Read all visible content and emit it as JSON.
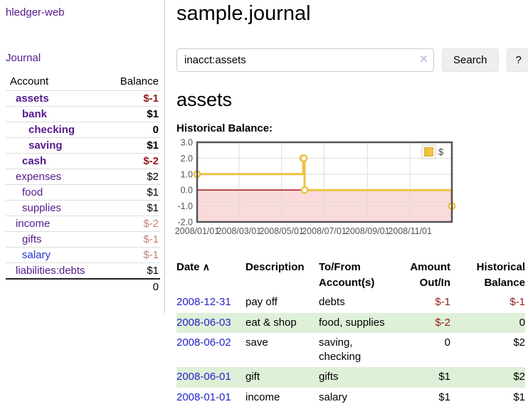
{
  "colors": {
    "accent_purple": "#551a8b",
    "link_blue": "#2323cc",
    "negative_red": "#961919",
    "muted_negative_red": "#c57e7e",
    "stripe_green": "#dff0d8",
    "chart_line_gold": "#edc240"
  },
  "sidebar": {
    "brand": "hledger-web",
    "journal_label": "Journal",
    "columns": {
      "account": "Account",
      "balance": "Balance"
    },
    "accounts": [
      {
        "name": "assets",
        "balance": "$-1",
        "name_class": "lvl1 bold",
        "balance_class": "bold neg"
      },
      {
        "name": "bank",
        "balance": "$1",
        "name_class": "lvl2 bold",
        "balance_class": "bold"
      },
      {
        "name": "checking",
        "balance": "0",
        "name_class": "lvl3 bold",
        "balance_class": "bold"
      },
      {
        "name": "saving",
        "balance": "$1",
        "name_class": "lvl3 bold",
        "balance_class": "bold"
      },
      {
        "name": "cash",
        "balance": "$-2",
        "name_class": "lvl2 bold",
        "balance_class": "bold neg"
      },
      {
        "name": "expenses",
        "balance": "$2",
        "name_class": "lvl1",
        "balance_class": ""
      },
      {
        "name": "food",
        "balance": "$1",
        "name_class": "lvl2",
        "balance_class": ""
      },
      {
        "name": "supplies",
        "balance": "$1",
        "name_class": "lvl2",
        "balance_class": ""
      },
      {
        "name": "income",
        "balance": "$-2",
        "name_class": "lvl1",
        "balance_class": "muted"
      },
      {
        "name": "gifts",
        "balance": "$-1",
        "name_class": "lvl2",
        "balance_class": "muted"
      },
      {
        "name": "salary",
        "balance": "$-1",
        "name_class": "lvl2 blue",
        "balance_class": "muted"
      },
      {
        "name": "liabilities:debts",
        "balance": "$1",
        "name_class": "lvl1",
        "balance_class": ""
      }
    ],
    "total": "0"
  },
  "main": {
    "title": "sample.journal",
    "search": {
      "value": "inacct:assets",
      "clear_icon": "×",
      "button_label": "Search",
      "help_label": "?"
    },
    "account_heading": "assets",
    "table": {
      "columns": [
        "Date",
        "Description",
        "To/From Account(s)",
        "Amount Out/In",
        "Historical Balance"
      ],
      "sort_icon": "∧",
      "rows": [
        {
          "date": "2008-12-31",
          "description": "pay off",
          "accounts": "debts",
          "amount": "$-1",
          "amount_class": "neg",
          "balance": "$-1",
          "balance_class": "neg"
        },
        {
          "date": "2008-06-03",
          "description": "eat & shop",
          "accounts": "food, supplies",
          "amount": "$-2",
          "amount_class": "neg",
          "balance": "0",
          "balance_class": ""
        },
        {
          "date": "2008-06-02",
          "description": "save",
          "accounts": "saving, checking",
          "amount": "0",
          "amount_class": "",
          "balance": "$2",
          "balance_class": ""
        },
        {
          "date": "2008-06-01",
          "description": "gift",
          "accounts": "gifts",
          "amount": "$1",
          "amount_class": "",
          "balance": "$2",
          "balance_class": ""
        },
        {
          "date": "2008-01-01",
          "description": "income",
          "accounts": "salary",
          "amount": "$1",
          "amount_class": "",
          "balance": "$1",
          "balance_class": ""
        }
      ]
    }
  },
  "chart_data": {
    "type": "line",
    "step": true,
    "title": "Historical Balance:",
    "xlabel": "",
    "ylabel": "",
    "x_domain": [
      "2008-01-01",
      "2008-12-31"
    ],
    "ylim": [
      -2,
      3
    ],
    "grid": true,
    "y_ticks": [
      {
        "label": "3.0",
        "value": 3
      },
      {
        "label": "2.0",
        "value": 2
      },
      {
        "label": "1.0",
        "value": 1
      },
      {
        "label": "0.0",
        "value": 0
      },
      {
        "label": "-1.0",
        "value": -1
      },
      {
        "label": "-2.0",
        "value": -2
      }
    ],
    "x_ticks": [
      {
        "label": "2008/01/01",
        "date": "2008-01-01"
      },
      {
        "label": "2008/03/01",
        "date": "2008-03-01"
      },
      {
        "label": "2008/05/01",
        "date": "2008-05-01"
      },
      {
        "label": "2008/07/01",
        "date": "2008-07-01"
      },
      {
        "label": "2008/09/01",
        "date": "2008-09-01"
      },
      {
        "label": "2008/11/01",
        "date": "2008-11-01"
      }
    ],
    "series": [
      {
        "name": "$",
        "color": "#edc240",
        "points": [
          [
            "2008-01-01",
            1
          ],
          [
            "2008-06-01",
            2
          ],
          [
            "2008-06-02",
            2
          ],
          [
            "2008-06-03",
            0
          ],
          [
            "2008-12-31",
            -1
          ]
        ]
      }
    ],
    "negative_region_color": "#f9dbdb",
    "zero_line_color": "#aa2222",
    "grid_color": "#dcdcdc",
    "border_color": "#545454",
    "tick_text_color": "#545454",
    "legend": {
      "label": "$",
      "position": "top-right"
    }
  }
}
